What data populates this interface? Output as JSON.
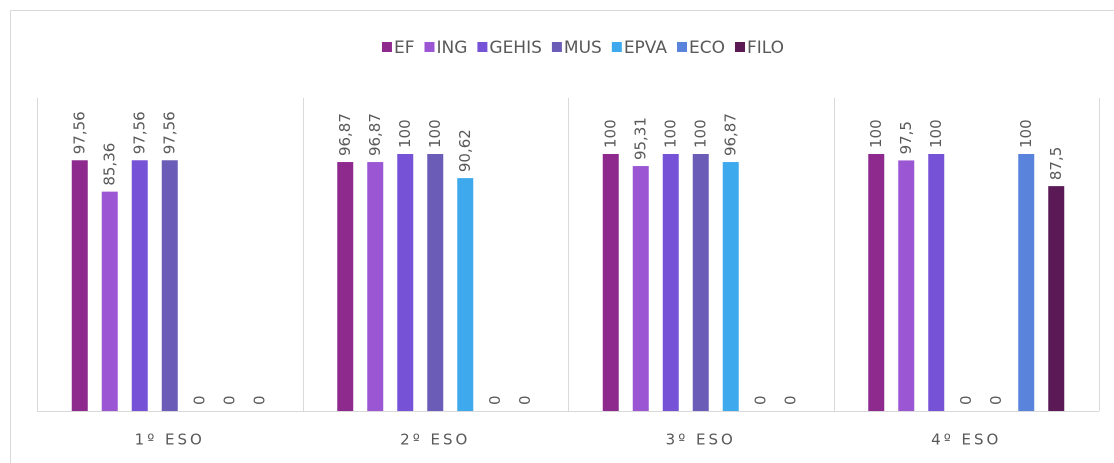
{
  "chart_data": {
    "type": "bar",
    "categories": [
      "1º ESO",
      "2º ESO",
      "3º ESO",
      "4º ESO"
    ],
    "series": [
      {
        "name": "EF",
        "color": "#8e2a8e",
        "values": [
          97.56,
          96.87,
          100,
          100
        ],
        "value_labels": [
          "97,56",
          "96,87",
          "100",
          "100"
        ]
      },
      {
        "name": "ING",
        "color": "#9b57d3",
        "values": [
          85.36,
          96.87,
          95.31,
          97.5
        ],
        "value_labels": [
          "85,36",
          "96,87",
          "95,31",
          "97,5"
        ]
      },
      {
        "name": "GEHIS",
        "color": "#7653d6",
        "values": [
          97.56,
          100,
          100,
          100
        ],
        "value_labels": [
          "97,56",
          "100",
          "100",
          "100"
        ]
      },
      {
        "name": "MUS",
        "color": "#6b5cb8",
        "values": [
          97.56,
          100,
          100,
          0
        ],
        "value_labels": [
          "97,56",
          "100",
          "100",
          "0"
        ]
      },
      {
        "name": "EPVA",
        "color": "#3fa9ee",
        "values": [
          0,
          90.62,
          96.87,
          0
        ],
        "value_labels": [
          "0",
          "90,62",
          "96,87",
          "0"
        ]
      },
      {
        "name": "ECO",
        "color": "#5a84dc",
        "values": [
          0,
          0,
          0,
          100
        ],
        "value_labels": [
          "0",
          "0",
          "0",
          "100"
        ]
      },
      {
        "name": "FILO",
        "color": "#5b1a56",
        "values": [
          0,
          0,
          0,
          87.5
        ],
        "value_labels": [
          "0",
          "0",
          "0",
          "87,5"
        ]
      }
    ],
    "legend": "top"
  }
}
